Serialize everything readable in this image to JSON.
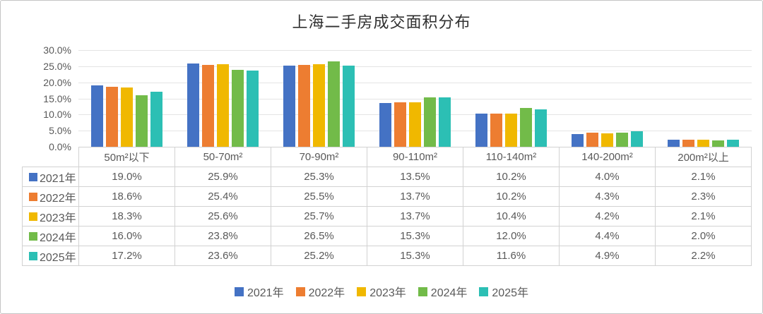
{
  "title": "上海二手房成交面积分布",
  "chart_data": {
    "type": "bar",
    "title": "上海二手房成交面积分布",
    "categories": [
      "50m²以下",
      "50-70m²",
      "70-90m²",
      "90-110m²",
      "110-140m²",
      "140-200m²",
      "200m²以上"
    ],
    "series": [
      {
        "name": "2021年",
        "color": "#4472C4",
        "values": [
          19.0,
          25.9,
          25.3,
          13.5,
          10.2,
          4.0,
          2.1
        ]
      },
      {
        "name": "2022年",
        "color": "#ED7D31",
        "values": [
          18.6,
          25.4,
          25.5,
          13.7,
          10.2,
          4.3,
          2.3
        ]
      },
      {
        "name": "2023年",
        "color": "#F0B800",
        "values": [
          18.3,
          25.6,
          25.7,
          13.7,
          10.4,
          4.2,
          2.1
        ]
      },
      {
        "name": "2024年",
        "color": "#72BB49",
        "values": [
          16.0,
          23.8,
          26.5,
          15.3,
          12.0,
          4.4,
          2.0
        ]
      },
      {
        "name": "2025年",
        "color": "#2CBFB4",
        "values": [
          17.2,
          23.6,
          25.2,
          15.3,
          11.6,
          4.9,
          2.2
        ]
      }
    ],
    "xlabel": "",
    "ylabel": "",
    "ylim": [
      0,
      30
    ],
    "ytick_step": 5,
    "ytick_labels": [
      "30.0%",
      "25.0%",
      "20.0%",
      "15.0%",
      "10.0%",
      "5.0%",
      "0.0%"
    ],
    "grid": true,
    "legend_position": "bottom",
    "data_table_shown": true
  },
  "table": {
    "col_headers": [
      "50m²以下",
      "50-70m²",
      "70-90m²",
      "90-110m²",
      "110-140m²",
      "140-200m²",
      "200m²以上"
    ],
    "rows": [
      {
        "label": "2021年",
        "color": "#4472C4",
        "cells": [
          "19.0%",
          "25.9%",
          "25.3%",
          "13.5%",
          "10.2%",
          "4.0%",
          "2.1%"
        ]
      },
      {
        "label": "2022年",
        "color": "#ED7D31",
        "cells": [
          "18.6%",
          "25.4%",
          "25.5%",
          "13.7%",
          "10.2%",
          "4.3%",
          "2.3%"
        ]
      },
      {
        "label": "2023年",
        "color": "#F0B800",
        "cells": [
          "18.3%",
          "25.6%",
          "25.7%",
          "13.7%",
          "10.4%",
          "4.2%",
          "2.1%"
        ]
      },
      {
        "label": "2024年",
        "color": "#72BB49",
        "cells": [
          "16.0%",
          "23.8%",
          "26.5%",
          "15.3%",
          "12.0%",
          "4.4%",
          "2.0%"
        ]
      },
      {
        "label": "2025年",
        "color": "#2CBFB4",
        "cells": [
          "17.2%",
          "23.6%",
          "25.2%",
          "15.3%",
          "11.6%",
          "4.9%",
          "2.2%"
        ]
      }
    ]
  },
  "legend": {
    "items": [
      {
        "label": "2021年",
        "color": "#4472C4"
      },
      {
        "label": "2022年",
        "color": "#ED7D31"
      },
      {
        "label": "2023年",
        "color": "#F0B800"
      },
      {
        "label": "2024年",
        "color": "#72BB49"
      },
      {
        "label": "2025年",
        "color": "#2CBFB4"
      }
    ]
  }
}
